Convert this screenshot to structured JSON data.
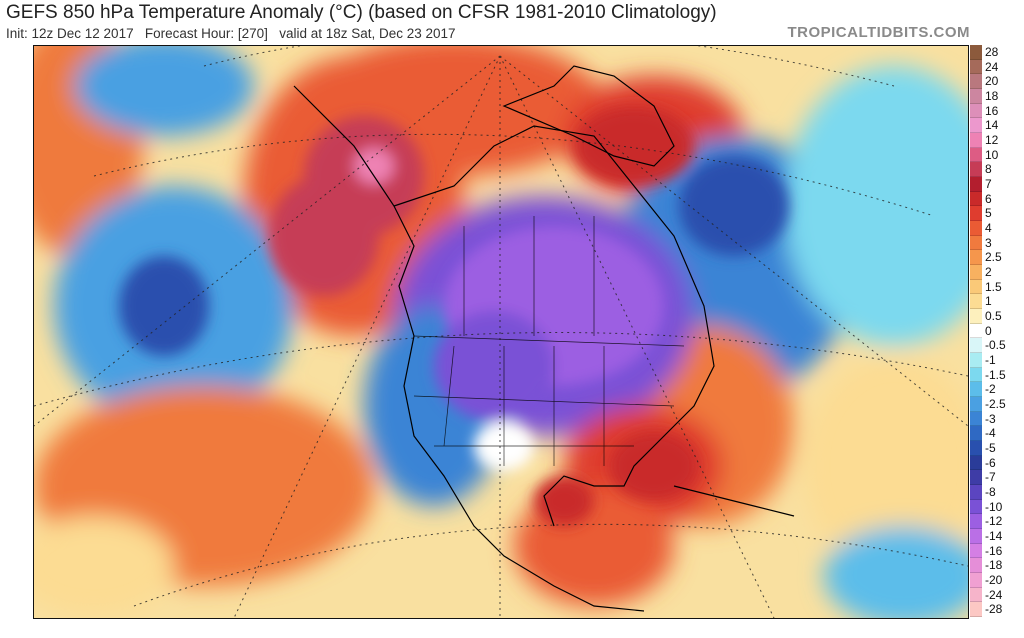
{
  "header": {
    "title": "GEFS 850 hPa Temperature Anomaly (°C) (based on CFSR 1981-2010 Climatology)",
    "init": "Init: 12z Dec 12 2017",
    "forecast_hour": "Forecast Hour: [270]",
    "valid": "valid at 18z Sat, Dec 23 2017",
    "credit": "TROPICALTIDBITS.COM"
  },
  "colorbar": {
    "entries": [
      {
        "label": "28",
        "color": "#8c5a3c"
      },
      {
        "label": "24",
        "color": "#a56a5a"
      },
      {
        "label": "20",
        "color": "#b9787e"
      },
      {
        "label": "18",
        "color": "#cc86a0"
      },
      {
        "label": "16",
        "color": "#dd8fb9"
      },
      {
        "label": "14",
        "color": "#ec98cd"
      },
      {
        "label": "12",
        "color": "#ee82b4"
      },
      {
        "label": "10",
        "color": "#dd5c84"
      },
      {
        "label": "8",
        "color": "#c63c56"
      },
      {
        "label": "7",
        "color": "#b31e2e"
      },
      {
        "label": "6",
        "color": "#c92a2a"
      },
      {
        "label": "5",
        "color": "#df3d2f"
      },
      {
        "label": "4",
        "color": "#ea5b34"
      },
      {
        "label": "3",
        "color": "#f07a3e"
      },
      {
        "label": "2.5",
        "color": "#f5964c"
      },
      {
        "label": "2",
        "color": "#f8b160"
      },
      {
        "label": "1.5",
        "color": "#fac978"
      },
      {
        "label": "1",
        "color": "#fcdc93"
      },
      {
        "label": "0.5",
        "color": "#fdf0bd"
      },
      {
        "label": "0",
        "color": "#ffffff"
      },
      {
        "label": "-0.5",
        "color": "#d9f6f8"
      },
      {
        "label": "-1",
        "color": "#a9ecf2"
      },
      {
        "label": "-1.5",
        "color": "#7cd9ef"
      },
      {
        "label": "-2",
        "color": "#5cbdea"
      },
      {
        "label": "-2.5",
        "color": "#4aa0e2"
      },
      {
        "label": "-3",
        "color": "#3b84d5"
      },
      {
        "label": "-4",
        "color": "#2f69c3"
      },
      {
        "label": "-5",
        "color": "#2950ae"
      },
      {
        "label": "-6",
        "color": "#2a3c99"
      },
      {
        "label": "-7",
        "color": "#3e3ca6"
      },
      {
        "label": "-8",
        "color": "#5b45c0"
      },
      {
        "label": "-10",
        "color": "#7a51d6"
      },
      {
        "label": "-12",
        "color": "#9c5fe2"
      },
      {
        "label": "-14",
        "color": "#ba6fe6"
      },
      {
        "label": "-16",
        "color": "#d47fe4"
      },
      {
        "label": "-18",
        "color": "#e58ed8"
      },
      {
        "label": "-20",
        "color": "#f0a0d2"
      },
      {
        "label": "-24",
        "color": "#f6b4ca"
      },
      {
        "label": "-28",
        "color": "#fcc8c4"
      }
    ]
  }
}
